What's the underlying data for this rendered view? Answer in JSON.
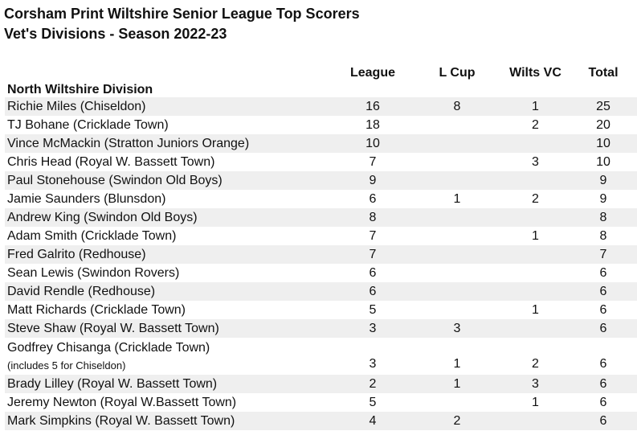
{
  "title": {
    "line1": "Corsham Print Wiltshire Senior League Top Scorers",
    "line2": "Vet's Divisions - Season 2022-23"
  },
  "table": {
    "columns": {
      "league": "League",
      "l_cup": "L Cup",
      "wilts_vc": "Wilts VC",
      "total": "Total"
    },
    "section": "North Wiltshire Division",
    "rows": [
      {
        "name": "Richie Miles (Chiseldon)",
        "league": "16",
        "l_cup": "8",
        "wilts_vc": "1",
        "total": "25"
      },
      {
        "name": "TJ Bohane (Cricklade Town)",
        "league": "18",
        "l_cup": "",
        "wilts_vc": "2",
        "total": "20"
      },
      {
        "name": "Vince McMackin (Stratton Juniors Orange)",
        "league": "10",
        "l_cup": "",
        "wilts_vc": "",
        "total": "10"
      },
      {
        "name": "Chris Head (Royal W. Bassett Town)",
        "league": "7",
        "l_cup": "",
        "wilts_vc": "3",
        "total": "10"
      },
      {
        "name": "Paul Stonehouse (Swindon Old Boys)",
        "league": "9",
        "l_cup": "",
        "wilts_vc": "",
        "total": "9"
      },
      {
        "name": "Jamie Saunders (Blunsdon)",
        "league": "6",
        "l_cup": "1",
        "wilts_vc": "2",
        "total": "9"
      },
      {
        "name": "Andrew King (Swindon Old Boys)",
        "league": "8",
        "l_cup": "",
        "wilts_vc": "",
        "total": "8"
      },
      {
        "name": "Adam Smith (Cricklade Town)",
        "league": "7",
        "l_cup": "",
        "wilts_vc": "1",
        "total": "8"
      },
      {
        "name": "Fred Galrito (Redhouse)",
        "league": "7",
        "l_cup": "",
        "wilts_vc": "",
        "total": "7"
      },
      {
        "name": "Sean Lewis (Swindon Rovers)",
        "league": "6",
        "l_cup": "",
        "wilts_vc": "",
        "total": "6"
      },
      {
        "name": "David Rendle (Redhouse)",
        "league": "6",
        "l_cup": "",
        "wilts_vc": "",
        "total": "6"
      },
      {
        "name": "Matt Richards (Cricklade Town)",
        "league": "5",
        "l_cup": "",
        "wilts_vc": "1",
        "total": "6"
      },
      {
        "name": "Steve Shaw (Royal W. Bassett Town)",
        "league": "3",
        "l_cup": "3",
        "wilts_vc": "",
        "total": "6"
      },
      {
        "name": "Godfrey Chisanga (Cricklade Town)",
        "note": "(includes 5 for Chiseldon)",
        "league": "3",
        "l_cup": "1",
        "wilts_vc": "2",
        "total": "6"
      },
      {
        "name": "Brady Lilley (Royal W. Bassett Town)",
        "league": "2",
        "l_cup": "1",
        "wilts_vc": "3",
        "total": "6"
      },
      {
        "name": "Jeremy Newton (Royal W.Bassett Town)",
        "league": "5",
        "l_cup": "",
        "wilts_vc": "1",
        "total": "6"
      },
      {
        "name": "Mark Simpkins (Royal W. Bassett Town)",
        "league": "4",
        "l_cup": "2",
        "wilts_vc": "",
        "total": "6"
      }
    ]
  },
  "colors": {
    "stripe": "#efefef",
    "text": "#111111",
    "background": "#ffffff"
  }
}
